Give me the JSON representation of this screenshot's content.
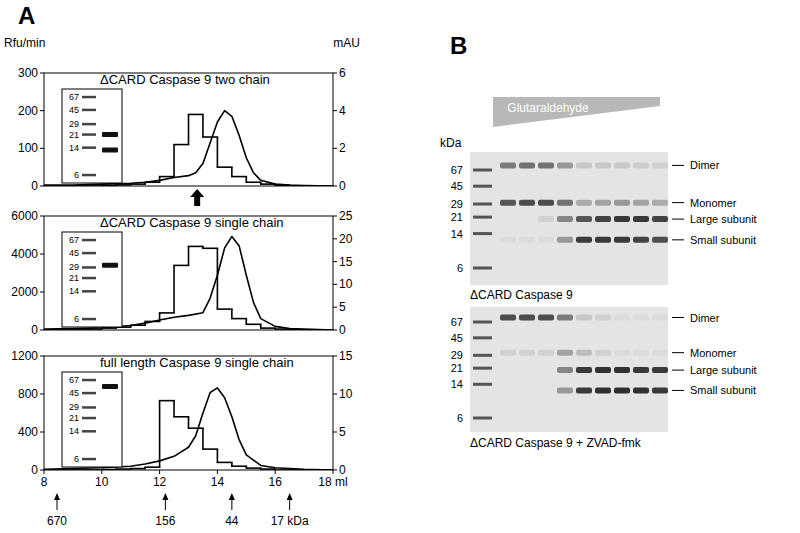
{
  "panels": [
    "A",
    "B"
  ],
  "chart_data": [
    {
      "type": "line",
      "title": "ΔCARD Caspase 9 two chain",
      "ylabel": "Rfu/min",
      "y2label": "mAU",
      "xlim": [
        8,
        18
      ],
      "ylim": [
        0,
        300
      ],
      "yticks": [
        0,
        100,
        200,
        300
      ],
      "y2lim": [
        0,
        6
      ],
      "y2ticks": [
        0,
        2,
        4,
        6
      ],
      "series": [
        {
          "type": "step",
          "axis": "y",
          "color": "#000000",
          "x": [
            8,
            8.5,
            9,
            9.5,
            10,
            10.5,
            11,
            11.5,
            12,
            12.5,
            13,
            13.5,
            14,
            14.5,
            15,
            15.5,
            16,
            16.5,
            17,
            17.5
          ],
          "values": [
            0,
            0,
            0,
            0,
            2,
            3,
            5,
            10,
            25,
            110,
            190,
            130,
            50,
            25,
            10,
            5,
            2,
            0,
            0,
            0
          ]
        },
        {
          "type": "line",
          "axis": "y2",
          "color": "#000000",
          "x": [
            8,
            9,
            10,
            11,
            11.5,
            12,
            12.5,
            13,
            13.25,
            13.5,
            13.75,
            14,
            14.25,
            14.5,
            14.75,
            15,
            15.25,
            15.5,
            16,
            16.5,
            17,
            18
          ],
          "values": [
            0.05,
            0.05,
            0.1,
            0.15,
            0.2,
            0.3,
            0.45,
            0.55,
            0.7,
            1.2,
            2.3,
            3.4,
            4.0,
            3.7,
            2.7,
            1.5,
            0.7,
            0.3,
            0.1,
            0.05,
            0.03,
            0
          ]
        }
      ],
      "pointer": {
        "x": 13.3
      },
      "inset": {
        "ladder": [
          67,
          45,
          29,
          21,
          14,
          6
        ],
        "bands": [
          21,
          13
        ]
      }
    },
    {
      "type": "line",
      "title": "ΔCARD Caspase 9 single chain",
      "xlim": [
        8,
        18
      ],
      "ylim": [
        0,
        6000
      ],
      "yticks": [
        0,
        2000,
        4000,
        6000
      ],
      "y2lim": [
        0,
        25
      ],
      "y2ticks": [
        0,
        5,
        10,
        15,
        20,
        25
      ],
      "series": [
        {
          "type": "step",
          "axis": "y",
          "color": "#000000",
          "x": [
            8,
            8.5,
            9,
            9.5,
            10,
            10.5,
            11,
            11.5,
            12,
            12.5,
            13,
            13.5,
            14,
            14.5,
            15,
            15.5,
            16,
            16.5,
            17,
            17.5
          ],
          "values": [
            0,
            0,
            0,
            50,
            100,
            150,
            250,
            450,
            900,
            3400,
            4400,
            4300,
            1100,
            600,
            300,
            100,
            50,
            0,
            0,
            0
          ]
        },
        {
          "type": "line",
          "axis": "y2",
          "color": "#000000",
          "x": [
            8,
            9,
            10,
            11,
            11.5,
            12,
            12.5,
            13,
            13.5,
            13.75,
            14,
            14.25,
            14.5,
            14.75,
            15,
            15.25,
            15.5,
            16,
            16.5,
            17,
            18
          ],
          "values": [
            0.2,
            0.3,
            0.5,
            1,
            1.5,
            2.2,
            2.8,
            3.2,
            3.8,
            7,
            12,
            18,
            20.5,
            18.5,
            12,
            6,
            2.5,
            0.8,
            0.3,
            0.2,
            0
          ]
        }
      ],
      "inset": {
        "ladder": [
          67,
          45,
          29,
          21,
          14,
          6
        ],
        "bands": [
          31
        ]
      }
    },
    {
      "type": "line",
      "title": "full length Caspase 9 single chain",
      "xlim": [
        8,
        18
      ],
      "xticks": [
        8,
        10,
        12,
        14,
        16,
        {
          "value": 18,
          "label": "18 ml"
        }
      ],
      "ylim": [
        0,
        1200
      ],
      "yticks": [
        0,
        400,
        800,
        1200
      ],
      "y2lim": [
        0,
        15
      ],
      "y2ticks": [
        0,
        5,
        10,
        15
      ],
      "series": [
        {
          "type": "step",
          "axis": "y",
          "color": "#000000",
          "x": [
            8,
            8.5,
            9,
            9.5,
            10,
            10.5,
            11,
            11.5,
            12,
            12.5,
            13,
            13.5,
            14,
            14.5,
            15,
            15.5,
            16,
            16.5,
            17,
            17.5
          ],
          "values": [
            0,
            0,
            0,
            0,
            5,
            10,
            15,
            30,
            730,
            560,
            440,
            220,
            80,
            40,
            20,
            10,
            0,
            0,
            0,
            0
          ]
        },
        {
          "type": "line",
          "axis": "y2",
          "color": "#000000",
          "x": [
            8,
            9,
            10,
            11,
            11.5,
            12,
            12.5,
            13,
            13.25,
            13.5,
            13.75,
            14,
            14.25,
            14.5,
            14.75,
            15,
            15.5,
            16,
            17,
            18
          ],
          "values": [
            0.1,
            0.2,
            0.3,
            0.5,
            0.8,
            1.2,
            1.8,
            3,
            4.5,
            7.5,
            10.2,
            10.8,
            9.5,
            7,
            4,
            2,
            0.6,
            0.3,
            0.1,
            0
          ]
        }
      ],
      "annotations": [
        {
          "x": 8.45,
          "label": "670"
        },
        {
          "x": 12.2,
          "label": "156"
        },
        {
          "x": 14.5,
          "label": "44"
        },
        {
          "x": 16.5,
          "label": "17 kDa"
        }
      ],
      "inset": {
        "ladder": [
          67,
          45,
          29,
          21,
          14,
          6
        ],
        "bands": [
          55
        ]
      }
    }
  ],
  "gels": {
    "wedge_label": "Glutaraldehyde",
    "unit_label": "kDa",
    "gels": [
      {
        "caption": "ΔCARD Caspase 9",
        "ladder": [
          67,
          45,
          29,
          21,
          14,
          6
        ],
        "bands": [
          {
            "label": "Dimer",
            "kda": 75,
            "intensities": [
              0.55,
              0.6,
              0.6,
              0.4,
              0.15,
              0.15,
              0.15,
              0.12,
              0.1
            ]
          },
          {
            "label": "Monomer",
            "kda": 30,
            "intensities": [
              0.75,
              0.8,
              0.8,
              0.6,
              0.3,
              0.35,
              0.4,
              0.35,
              0.3
            ]
          },
          {
            "label": "Large subunit",
            "kda": 20,
            "intensities": [
              0,
              0,
              0.1,
              0.5,
              0.75,
              0.85,
              0.9,
              0.9,
              0.85
            ]
          },
          {
            "label": "Small subunit",
            "kda": 12,
            "intensities": [
              0.05,
              0.05,
              0.05,
              0.4,
              0.9,
              0.9,
              0.9,
              0.85,
              0.8
            ]
          }
        ]
      },
      {
        "caption": "ΔCARD Caspase 9 + ZVAD-fmk",
        "ladder": [
          67,
          45,
          29,
          21,
          14,
          6
        ],
        "bands": [
          {
            "label": "Dimer",
            "kda": 75,
            "intensities": [
              0.8,
              0.8,
              0.8,
              0.55,
              0.15,
              0.1,
              0.05,
              0.05,
              0.05
            ]
          },
          {
            "label": "Monomer",
            "kda": 31,
            "intensities": [
              0.1,
              0.1,
              0.1,
              0.35,
              0.2,
              0.1,
              0.05,
              0.05,
              0.05
            ]
          },
          {
            "label": "Large subunit",
            "kda": 20,
            "intensities": [
              0,
              0,
              0,
              0.5,
              0.9,
              0.95,
              0.95,
              0.9,
              0.9
            ]
          },
          {
            "label": "Small subunit",
            "kda": 12,
            "intensities": [
              0,
              0,
              0,
              0.4,
              0.9,
              0.95,
              0.95,
              0.95,
              0.9
            ]
          }
        ]
      }
    ]
  }
}
